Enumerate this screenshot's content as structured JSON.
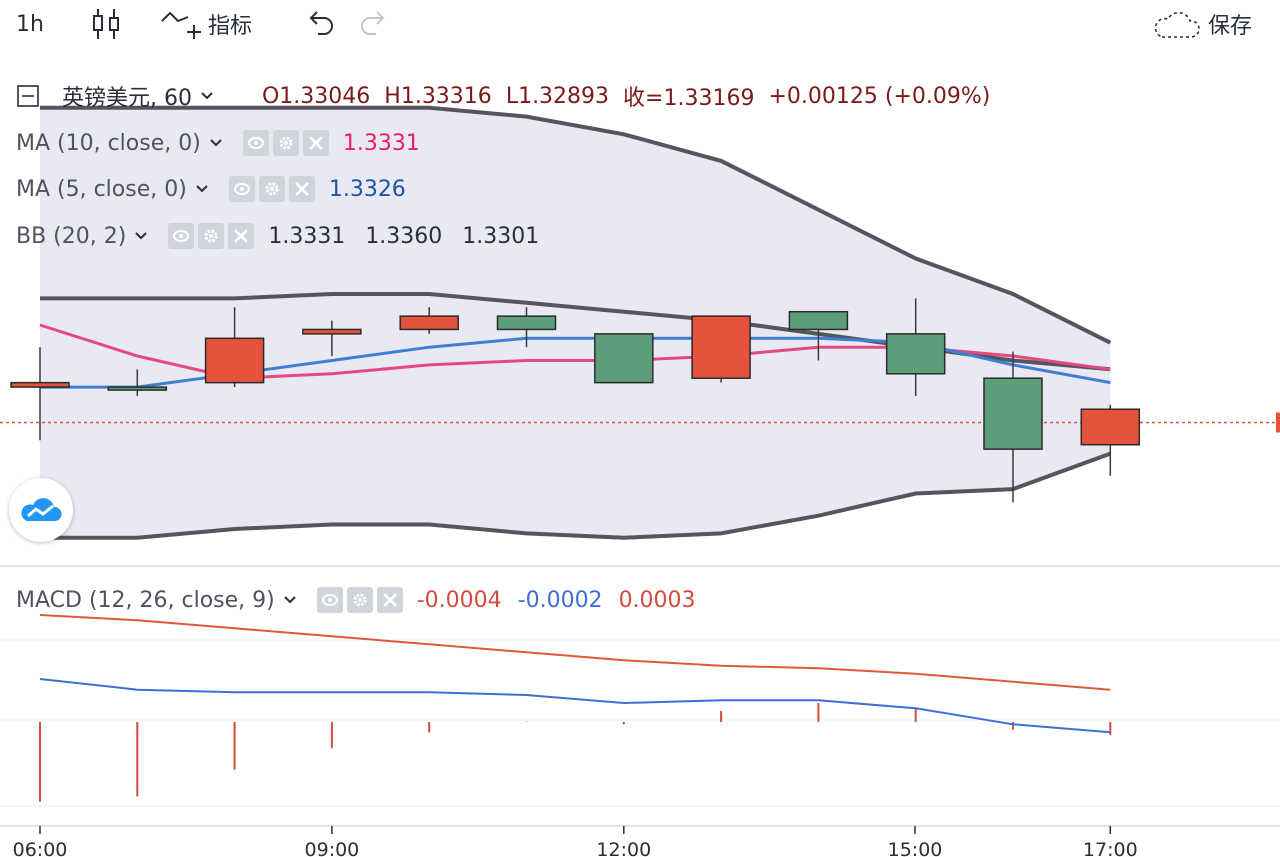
{
  "toolbar": {
    "interval": "1h",
    "indicators_label": "指标",
    "save_label": "保存",
    "icons": [
      "candles-icon",
      "indicators-icon",
      "undo-icon",
      "redo-icon",
      "cloud-save-icon"
    ]
  },
  "legend": {
    "symbol": "英镑美元, 60",
    "open": "O1.33046",
    "high": "H1.33316",
    "low": "L1.32893",
    "close": "收=1.33169",
    "change": "+0.00125 (+0.09%)",
    "ma10": {
      "label": "MA (10, close, 0)",
      "value": "1.3331",
      "color": "#e91e63"
    },
    "ma5": {
      "label": "MA (5, close, 0)",
      "value": "1.3326",
      "color": "#1e53a6"
    },
    "bb": {
      "label": "BB (20, 2)",
      "v1": "1.3331",
      "v2": "1.3360",
      "v3": "1.3301"
    },
    "macd": {
      "label": "MACD (12, 26, close, 9)",
      "v1": "-0.0004",
      "v2": "-0.0002",
      "v3": "0.0003"
    }
  },
  "colors": {
    "up": "#5d9e7a",
    "down": "#e5533d",
    "band_fill": "#e8e8f3",
    "band_line": "#55555e",
    "ma10": "#e64980",
    "ma5": "#3f7fd1",
    "macd": "#e05a3a",
    "signal": "#3f6fd6",
    "hist": "#d64a3a"
  },
  "chart_data": [
    {
      "type": "candlestick",
      "time_axis": [
        "06:00",
        "09:00",
        "12:00",
        "15:00",
        "17:00"
      ],
      "x": [
        "06:00",
        "07:00",
        "08:00",
        "09:00",
        "10:00",
        "11:00",
        "12:00",
        "13:00",
        "14:00",
        "15:00",
        "16:00",
        "17:00"
      ],
      "candles": [
        {
          "o": 1.331,
          "h": 1.3318,
          "l": 1.3297,
          "c": 1.3309
        },
        {
          "o": 1.3309,
          "h": 1.3313,
          "l": 1.3307,
          "c": 1.3309
        },
        {
          "o": 1.332,
          "h": 1.3327,
          "l": 1.3309,
          "c": 1.331
        },
        {
          "o": 1.3322,
          "h": 1.3324,
          "l": 1.3316,
          "c": 1.3321
        },
        {
          "o": 1.3325,
          "h": 1.3327,
          "l": 1.3321,
          "c": 1.3322
        },
        {
          "o": 1.3322,
          "h": 1.3327,
          "l": 1.3318,
          "c": 1.3325
        },
        {
          "o": 1.331,
          "h": 1.3321,
          "l": 1.331,
          "c": 1.3321
        },
        {
          "o": 1.3325,
          "h": 1.3325,
          "l": 1.331,
          "c": 1.3311
        },
        {
          "o": 1.3322,
          "h": 1.3326,
          "l": 1.3315,
          "c": 1.3326
        },
        {
          "o": 1.3312,
          "h": 1.3329,
          "l": 1.3307,
          "c": 1.3321
        },
        {
          "o": 1.3295,
          "h": 1.3317,
          "l": 1.3283,
          "c": 1.3311
        },
        {
          "o": 1.3304,
          "h": 1.3305,
          "l": 1.3289,
          "c": 1.3296
        }
      ],
      "bb_upper": [
        1.3372,
        1.3372,
        1.3372,
        1.3372,
        1.3372,
        1.337,
        1.3366,
        1.336,
        1.3349,
        1.3338,
        1.333,
        1.3319
      ],
      "bb_middle": [
        1.3329,
        1.3329,
        1.3329,
        1.333,
        1.333,
        1.3328,
        1.3326,
        1.3324,
        1.3321,
        1.3318,
        1.3315,
        1.3313
      ],
      "bb_lower": [
        1.3275,
        1.3275,
        1.3277,
        1.3278,
        1.3278,
        1.3276,
        1.3275,
        1.3276,
        1.328,
        1.3285,
        1.3286,
        1.3294
      ],
      "ma10": [
        1.3323,
        1.3316,
        1.3311,
        1.3312,
        1.3314,
        1.3315,
        1.3315,
        1.3316,
        1.3318,
        1.3318,
        1.3316,
        1.3313
      ],
      "ma5": [
        1.3309,
        1.3309,
        1.3312,
        1.3315,
        1.3318,
        1.332,
        1.332,
        1.332,
        1.332,
        1.3319,
        1.3314,
        1.331
      ],
      "last_price": 1.3301
    },
    {
      "type": "line",
      "x": [
        "06:00",
        "07:00",
        "08:00",
        "09:00",
        "10:00",
        "11:00",
        "12:00",
        "13:00",
        "14:00",
        "15:00",
        "16:00",
        "17:00"
      ],
      "series": [
        {
          "name": "MACD",
          "values": [
            0.002,
            0.0018,
            0.0015,
            0.0012,
            0.0009,
            0.0006,
            0.0003,
            0.0001,
            0.0,
            -0.0002,
            -0.0005,
            -0.0008
          ]
        },
        {
          "name": "Signal",
          "values": [
            -0.0004,
            -0.0008,
            -0.0009,
            -0.0009,
            -0.0009,
            -0.001,
            -0.0013,
            -0.0012,
            -0.0012,
            -0.0015,
            -0.0021,
            -0.0024
          ]
        }
      ],
      "histogram": [
        -0.005,
        -0.0048,
        -0.0038,
        -0.003,
        -0.0024,
        -0.002,
        -0.0021,
        -0.0016,
        -0.0013,
        -0.0015,
        -0.0023,
        -0.0025
      ],
      "ylim": [
        -0.0055,
        0.0035
      ]
    }
  ]
}
